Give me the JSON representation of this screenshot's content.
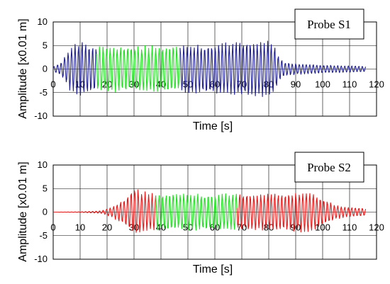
{
  "chart_data": [
    {
      "type": "line",
      "legend": "Probe S1",
      "xlabel": "Time [s]",
      "ylabel": "Amplitude [x0.01 m]",
      "xlim": [
        0,
        120
      ],
      "ylim": [
        -10,
        10
      ],
      "x_ticks": [
        "0",
        "10",
        "20",
        "30",
        "40",
        "50",
        "60",
        "70",
        "80",
        "90",
        "100",
        "110",
        "120"
      ],
      "y_ticks": [
        "10",
        "5",
        "0",
        "-5",
        "-10"
      ],
      "grid": true,
      "legend_position": "top-right",
      "highlight_window": [
        16,
        47
      ],
      "signal_end": 116,
      "envelope": [
        [
          0,
          0.5
        ],
        [
          3,
          1.5
        ],
        [
          6,
          4.5
        ],
        [
          10,
          6
        ],
        [
          14,
          5.2
        ],
        [
          16,
          5
        ],
        [
          47,
          5
        ],
        [
          50,
          5.2
        ],
        [
          60,
          5.5
        ],
        [
          70,
          6
        ],
        [
          80,
          6.2
        ],
        [
          82,
          5
        ],
        [
          84,
          2.5
        ],
        [
          86,
          1.5
        ],
        [
          90,
          1.2
        ],
        [
          100,
          0.9
        ],
        [
          116,
          0.6
        ]
      ],
      "series": [
        {
          "color": "#1f1f8f",
          "segment": "outside_highlight"
        },
        {
          "color": "#1fe01f",
          "segment": "highlight"
        }
      ]
    },
    {
      "type": "line",
      "legend": "Probe S2",
      "xlabel": "Time [s]",
      "ylabel": "Amplitude [x0.01 m]",
      "xlim": [
        0,
        120
      ],
      "ylim": [
        -10,
        10
      ],
      "x_ticks": [
        "0",
        "10",
        "20",
        "30",
        "40",
        "50",
        "60",
        "70",
        "80",
        "90",
        "100",
        "110",
        "120"
      ],
      "y_ticks": [
        "10",
        "5",
        "0",
        "-5",
        "-10"
      ],
      "grid": true,
      "legend_position": "top-right",
      "highlight_window": [
        38,
        68
      ],
      "signal_end": 116,
      "envelope": [
        [
          0,
          0
        ],
        [
          10,
          0.05
        ],
        [
          18,
          0.3
        ],
        [
          22,
          1.2
        ],
        [
          27,
          3
        ],
        [
          30,
          5.5
        ],
        [
          33,
          4.5
        ],
        [
          37,
          4
        ],
        [
          40,
          4
        ],
        [
          60,
          4
        ],
        [
          68,
          4
        ],
        [
          75,
          4
        ],
        [
          85,
          4
        ],
        [
          95,
          4.5
        ],
        [
          100,
          3
        ],
        [
          105,
          1.5
        ],
        [
          110,
          1
        ],
        [
          116,
          0.8
        ]
      ],
      "series": [
        {
          "color": "#e81818",
          "segment": "outside_highlight"
        },
        {
          "color": "#1fe01f",
          "segment": "highlight"
        }
      ]
    }
  ]
}
